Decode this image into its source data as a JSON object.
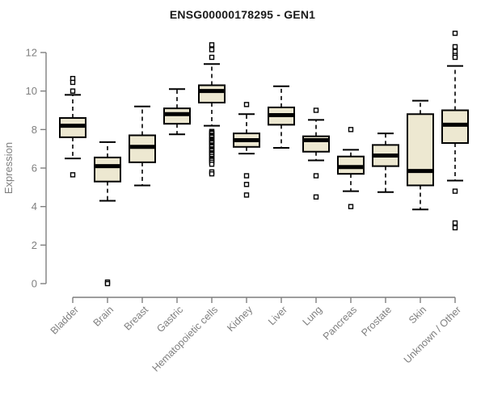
{
  "chart_data": {
    "type": "boxplot",
    "title": "ENSG00000178295 - GEN1",
    "ylabel": "Expression",
    "ylim": [
      0,
      12
    ],
    "yticks": [
      0,
      2,
      4,
      6,
      8,
      10,
      12
    ],
    "grid": false,
    "legend": "none",
    "colors": {
      "box_fill": "#ede8d1",
      "box_stroke": "#000000",
      "median": "#000000",
      "outlier_fill": "#ffffff",
      "axis": "#7f7f7f",
      "title": "#1a1a1a"
    },
    "categories": [
      "Bladder",
      "Brain",
      "Breast",
      "Gastric",
      "Hematopoietic cells",
      "Kidney",
      "Liver",
      "Lung",
      "Pancreas",
      "Prostate",
      "Skin",
      "Unknown / Other"
    ],
    "boxes": [
      {
        "label": "Bladder",
        "low": 6.5,
        "q1": 7.6,
        "median": 8.2,
        "q3": 8.6,
        "high": 9.8,
        "outliers": [
          10.65,
          10.45,
          10.0,
          5.65
        ]
      },
      {
        "label": "Brain",
        "low": 4.3,
        "q1": 5.3,
        "median": 6.1,
        "q3": 6.55,
        "high": 7.35,
        "outliers": [
          0.08,
          0.0
        ]
      },
      {
        "label": "Breast",
        "low": 5.1,
        "q1": 6.3,
        "median": 7.1,
        "q3": 7.7,
        "high": 9.2,
        "outliers": []
      },
      {
        "label": "Gastric",
        "low": 7.75,
        "q1": 8.3,
        "median": 8.8,
        "q3": 9.1,
        "high": 10.1,
        "outliers": []
      },
      {
        "label": "Hematopoietic cells",
        "low": 8.2,
        "q1": 9.4,
        "median": 10.0,
        "q3": 10.3,
        "high": 11.4,
        "outliers": [
          12.4,
          12.15,
          11.75,
          7.9,
          7.85,
          7.8,
          7.7,
          7.65,
          7.6,
          7.5,
          7.45,
          7.4,
          7.35,
          7.3,
          7.2,
          7.15,
          7.1,
          7.0,
          6.95,
          6.9,
          6.8,
          6.75,
          6.7,
          6.6,
          6.5,
          6.45,
          6.4,
          6.3,
          6.2,
          5.8,
          5.7
        ]
      },
      {
        "label": "Kidney",
        "low": 6.75,
        "q1": 7.1,
        "median": 7.45,
        "q3": 7.8,
        "high": 8.8,
        "outliers": [
          9.3,
          5.6,
          5.15,
          4.6
        ]
      },
      {
        "label": "Liver",
        "low": 7.05,
        "q1": 8.25,
        "median": 8.75,
        "q3": 9.15,
        "high": 10.25,
        "outliers": []
      },
      {
        "label": "Lung",
        "low": 6.4,
        "q1": 6.85,
        "median": 7.45,
        "q3": 7.65,
        "high": 8.5,
        "outliers": [
          9.0,
          5.6,
          4.5
        ]
      },
      {
        "label": "Pancreas",
        "low": 4.8,
        "q1": 5.7,
        "median": 6.05,
        "q3": 6.6,
        "high": 6.95,
        "outliers": [
          8.0,
          4.0
        ]
      },
      {
        "label": "Prostate",
        "low": 4.75,
        "q1": 6.1,
        "median": 6.65,
        "q3": 7.2,
        "high": 7.8,
        "outliers": []
      },
      {
        "label": "Skin",
        "low": 3.85,
        "q1": 5.1,
        "median": 5.85,
        "q3": 8.8,
        "high": 9.5,
        "outliers": []
      },
      {
        "label": "Unknown / Other",
        "low": 5.35,
        "q1": 7.3,
        "median": 8.25,
        "q3": 9.0,
        "high": 11.3,
        "outliers": [
          13.0,
          12.3,
          12.05,
          11.85,
          11.75,
          4.8,
          3.15,
          2.9
        ]
      }
    ]
  }
}
